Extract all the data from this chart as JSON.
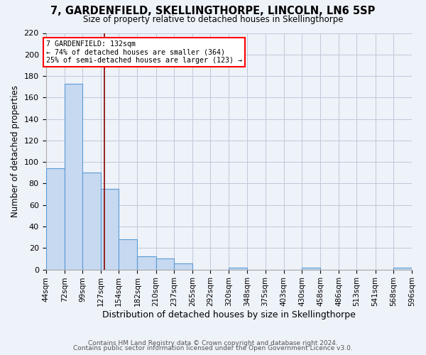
{
  "title": "7, GARDENFIELD, SKELLINGTHORPE, LINCOLN, LN6 5SP",
  "subtitle": "Size of property relative to detached houses in Skellingthorpe",
  "xlabel": "Distribution of detached houses by size in Skellingthorpe",
  "ylabel": "Number of detached properties",
  "bin_edges": [
    44,
    72,
    99,
    127,
    154,
    182,
    210,
    237,
    265,
    292,
    320,
    348,
    375,
    403,
    430,
    458,
    486,
    513,
    541,
    568,
    596
  ],
  "bar_heights": [
    94,
    173,
    90,
    75,
    28,
    12,
    10,
    6,
    0,
    0,
    2,
    0,
    0,
    0,
    2,
    0,
    0,
    0,
    0,
    2
  ],
  "bar_color": "#c6d9f0",
  "bar_edgecolor": "#5b9bd5",
  "grid_color": "#c0c8d8",
  "bg_color": "#eef2f9",
  "red_line_x": 132,
  "annotation_text": "7 GARDENFIELD: 132sqm\n← 74% of detached houses are smaller (364)\n25% of semi-detached houses are larger (123) →",
  "annotation_box_color": "white",
  "annotation_border_color": "red",
  "ylim": [
    0,
    220
  ],
  "yticks": [
    0,
    20,
    40,
    60,
    80,
    100,
    120,
    140,
    160,
    180,
    200,
    220
  ],
  "footer1": "Contains HM Land Registry data © Crown copyright and database right 2024.",
  "footer2": "Contains public sector information licensed under the Open Government Licence v3.0."
}
